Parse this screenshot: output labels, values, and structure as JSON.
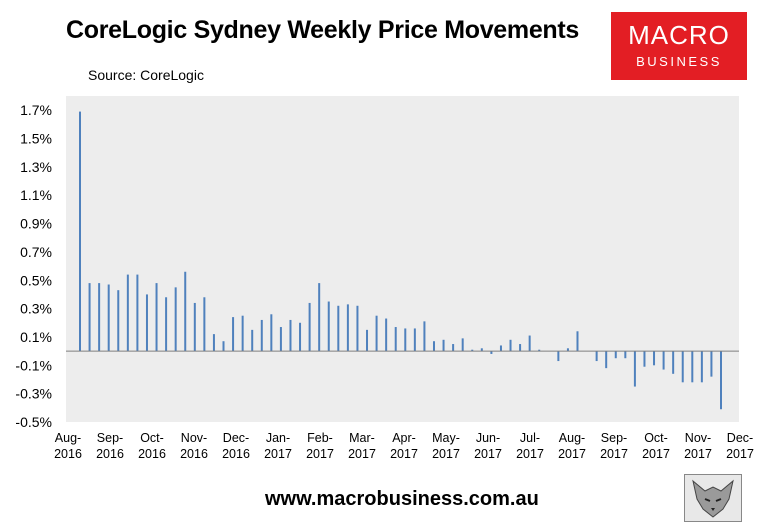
{
  "header": {
    "title": "CoreLogic Sydney Weekly Price Movements",
    "source": "Source: CoreLogic"
  },
  "logo": {
    "line1": "MACRO",
    "line2": "BUSINESS",
    "color": "#e31e24"
  },
  "footer": {
    "website": "www.macrobusiness.com.au"
  },
  "colors": {
    "plot_bg": "#ededed",
    "bar": "#4f81bd",
    "axis": "#7f7f7f"
  },
  "chart_data": {
    "type": "bar",
    "title": "CoreLogic Sydney Weekly Price Movements",
    "ylim": [
      -0.5,
      1.8
    ],
    "y_ticks": [
      -0.5,
      -0.3,
      -0.1,
      0.1,
      0.3,
      0.5,
      0.7,
      0.9,
      1.1,
      1.3,
      1.5,
      1.7
    ],
    "y_tick_labels": [
      "-0.5%",
      "-0.3%",
      "-0.1%",
      "0.1%",
      "0.3%",
      "0.5%",
      "0.7%",
      "0.9%",
      "1.1%",
      "1.3%",
      "1.5%",
      "1.7%"
    ],
    "x_tick_labels": [
      [
        "Aug-",
        "2016"
      ],
      [
        "Sep-",
        "2016"
      ],
      [
        "Oct-",
        "2016"
      ],
      [
        "Nov-",
        "2016"
      ],
      [
        "Dec-",
        "2016"
      ],
      [
        "Jan-",
        "2017"
      ],
      [
        "Feb-",
        "2017"
      ],
      [
        "Mar-",
        "2017"
      ],
      [
        "Apr-",
        "2017"
      ],
      [
        "May-",
        "2017"
      ],
      [
        "Jun-",
        "2017"
      ],
      [
        "Jul-",
        "2017"
      ],
      [
        "Aug-",
        "2017"
      ],
      [
        "Sep-",
        "2017"
      ],
      [
        "Oct-",
        "2017"
      ],
      [
        "Nov-",
        "2017"
      ],
      [
        "Dec-",
        "2017"
      ]
    ],
    "values": [
      1.69,
      0.48,
      0.48,
      0.47,
      0.43,
      0.54,
      0.54,
      0.4,
      0.48,
      0.38,
      0.45,
      0.56,
      0.34,
      0.38,
      0.12,
      0.07,
      0.24,
      0.25,
      0.15,
      0.22,
      0.26,
      0.17,
      0.22,
      0.2,
      0.34,
      0.48,
      0.35,
      0.32,
      0.33,
      0.32,
      0.15,
      0.25,
      0.23,
      0.17,
      0.16,
      0.16,
      0.21,
      0.07,
      0.08,
      0.05,
      0.09,
      0.01,
      0.02,
      -0.02,
      0.04,
      0.08,
      0.05,
      0.11,
      0.01,
      0.0,
      -0.07,
      0.02,
      0.14,
      0.0,
      -0.07,
      -0.12,
      -0.05,
      -0.05,
      -0.25,
      -0.11,
      -0.1,
      -0.13,
      -0.16,
      -0.22,
      -0.22,
      -0.22,
      -0.18,
      -0.41
    ]
  }
}
